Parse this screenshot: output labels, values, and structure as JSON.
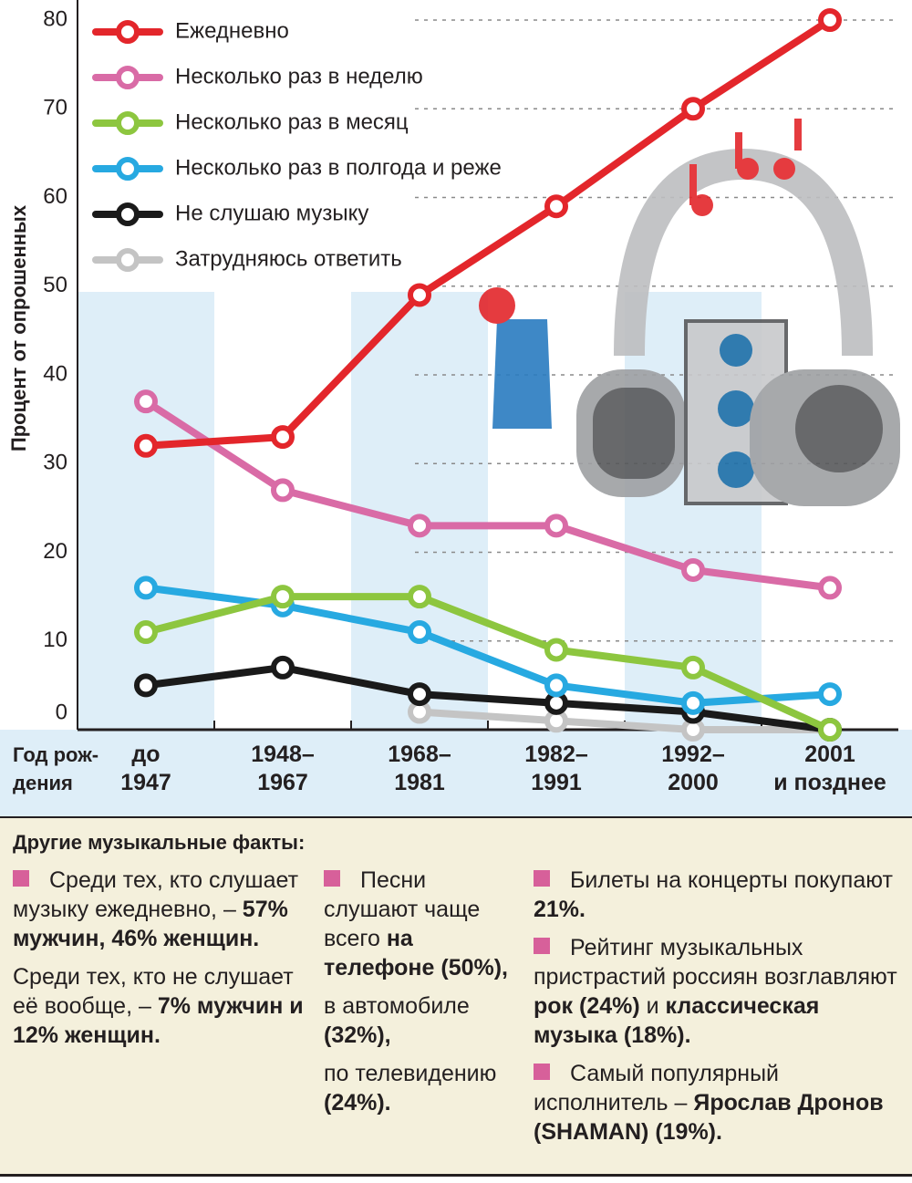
{
  "chart_data": {
    "type": "line",
    "ylabel": "Процент от опрошенных",
    "xlabel": "Год рож-\nдения",
    "categories": [
      "до\n1947",
      "1948–\n1967",
      "1968–\n1981",
      "1982–\n1991",
      "1992–\n2000",
      "2001\nи позднее"
    ],
    "series": [
      {
        "name": "Ежедневно",
        "color": "#e3262b",
        "values": [
          32,
          33,
          49,
          59,
          70,
          80
        ]
      },
      {
        "name": "Несколько раз в неделю",
        "color": "#d96ba6",
        "values": [
          37,
          27,
          23,
          23,
          18,
          16
        ]
      },
      {
        "name": "Несколько раз в месяц",
        "color": "#8dc63f",
        "values": [
          11,
          15,
          15,
          9,
          7,
          0
        ]
      },
      {
        "name": "Несколько раз в полгода и реже",
        "color": "#27a9e1",
        "values": [
          16,
          14,
          11,
          5,
          3,
          4
        ]
      },
      {
        "name": "Не слушаю музыку",
        "color": "#1a1a1a",
        "values": [
          5,
          7,
          4,
          3,
          2,
          0
        ]
      },
      {
        "name": "Затрудняюсь ответить",
        "color": "#c4c4c4",
        "values": [
          null,
          null,
          2,
          1,
          0,
          0
        ]
      }
    ],
    "ylim": [
      0,
      80
    ],
    "yticks": [
      0,
      10,
      20,
      30,
      40,
      50,
      60,
      70,
      80
    ],
    "grid": true
  },
  "facts": {
    "title": "Другие музыкальные факты:",
    "columns": [
      [
        {
          "bullet": true,
          "runs": [
            {
              "text": "Среди тех, кто слушает музыку ежедневно, – ",
              "bold": false
            },
            {
              "text": "57% мужчин, 46% женщин.",
              "bold": true
            }
          ]
        },
        {
          "bullet": false,
          "runs": [
            {
              "text": "Среди тех, кто не слушает её вообще, – ",
              "bold": false
            },
            {
              "text": "7% мужчин и 12% женщин.",
              "bold": true
            }
          ]
        }
      ],
      [
        {
          "bullet": true,
          "runs": [
            {
              "text": "Песни слушают чаще всего ",
              "bold": false
            },
            {
              "text": "на телефоне (50%),",
              "bold": true
            }
          ]
        },
        {
          "bullet": false,
          "runs": [
            {
              "text": "в автомобиле ",
              "bold": false
            },
            {
              "text": "(32%),",
              "bold": true
            }
          ]
        },
        {
          "bullet": false,
          "runs": [
            {
              "text": "по телевидению ",
              "bold": false
            },
            {
              "text": "(24%).",
              "bold": true
            }
          ]
        }
      ],
      [
        {
          "bullet": true,
          "runs": [
            {
              "text": "Билеты на концерты покупают ",
              "bold": false
            },
            {
              "text": "21%.",
              "bold": true
            }
          ]
        },
        {
          "bullet": true,
          "runs": [
            {
              "text": "Рейтинг музыкальных пристрастий россиян возглавляют ",
              "bold": false
            },
            {
              "text": "рок (24%)",
              "bold": true
            },
            {
              "text": " и ",
              "bold": false
            },
            {
              "text": "классическая музыка (18%).",
              "bold": true
            }
          ]
        },
        {
          "bullet": true,
          "runs": [
            {
              "text": "Самый популярный исполнитель – ",
              "bold": false
            },
            {
              "text": "Ярослав Дронов (SHAMAN) (19%).",
              "bold": true
            }
          ]
        }
      ]
    ]
  }
}
